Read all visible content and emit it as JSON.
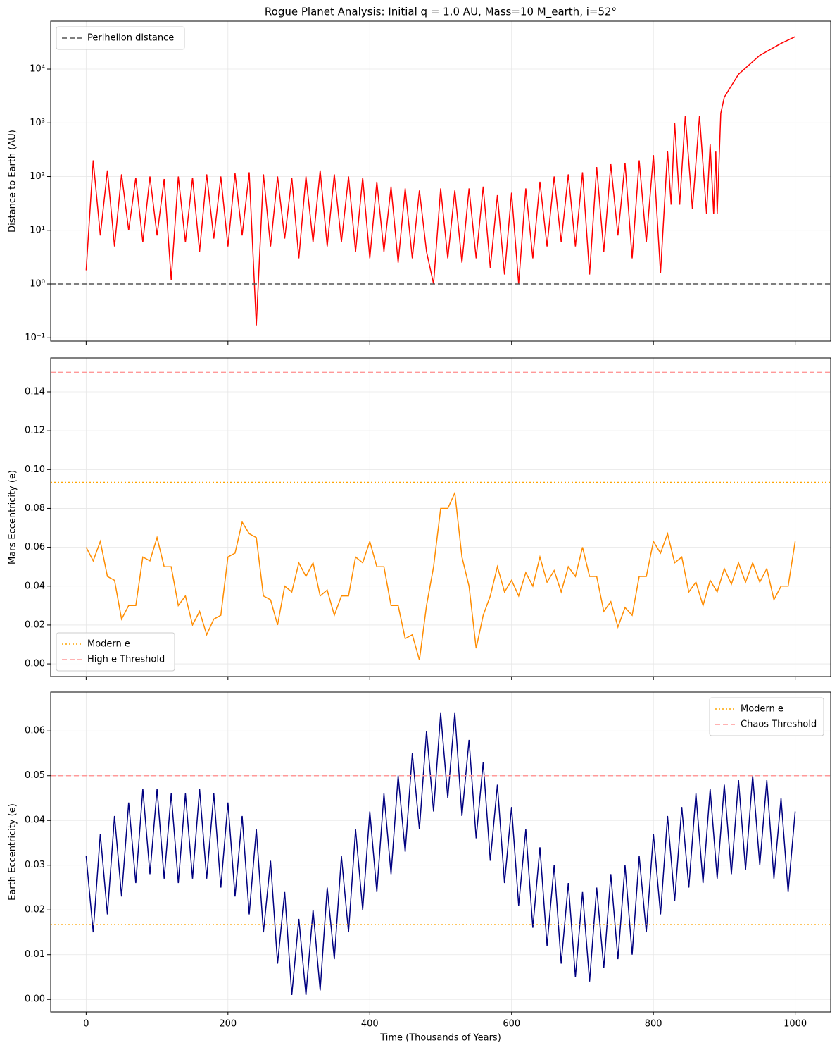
{
  "chart_data": [
    {
      "type": "line",
      "title": "Rogue Planet Analysis: Initial q = 1.0 AU, Mass=10 M_earth, i=52°",
      "ylabel": "Distance to Earth (AU)",
      "yscale": "log",
      "grid": true,
      "legend": "upper left",
      "xlim": [
        -50,
        1050
      ],
      "ylim": [
        0.0867,
        78000
      ],
      "yticks": [
        {
          "value": 0.1,
          "label": "10⁻¹"
        },
        {
          "value": 1,
          "label": "10⁰"
        },
        {
          "value": 10,
          "label": "10¹"
        },
        {
          "value": 100,
          "label": "10²"
        },
        {
          "value": 1000,
          "label": "10³"
        },
        {
          "value": 10000,
          "label": "10⁴"
        }
      ],
      "color": "#ff0000",
      "x": [
        0,
        10,
        20,
        30,
        40,
        50,
        60,
        70,
        80,
        90,
        100,
        110,
        120,
        130,
        140,
        150,
        160,
        170,
        180,
        190,
        200,
        210,
        220,
        230,
        240,
        250,
        260,
        270,
        280,
        290,
        300,
        310,
        320,
        330,
        340,
        350,
        360,
        370,
        380,
        390,
        400,
        410,
        420,
        430,
        440,
        450,
        460,
        470,
        480,
        490,
        500,
        510,
        520,
        530,
        540,
        550,
        560,
        570,
        580,
        590,
        600,
        610,
        620,
        630,
        640,
        650,
        660,
        670,
        680,
        690,
        700,
        710,
        720,
        730,
        740,
        750,
        760,
        770,
        780,
        790,
        800,
        810,
        820,
        825,
        830,
        837,
        845,
        855,
        865,
        875,
        880,
        885,
        888,
        890,
        895,
        900,
        920,
        950,
        980,
        1000
      ],
      "values": [
        1.8,
        200,
        8,
        130,
        5,
        110,
        10,
        95,
        6,
        100,
        8,
        90,
        1.2,
        100,
        6,
        95,
        4,
        110,
        7,
        100,
        5,
        115,
        8,
        120,
        0.17,
        110,
        5,
        100,
        7,
        95,
        3,
        100,
        6,
        130,
        5,
        110,
        6,
        100,
        4,
        95,
        3,
        80,
        4,
        65,
        2.5,
        60,
        3,
        55,
        4,
        1.0,
        60,
        3,
        55,
        2.5,
        60,
        3,
        65,
        2,
        45,
        1.5,
        50,
        1.0,
        60,
        3,
        80,
        5,
        100,
        6,
        110,
        5,
        120,
        1.5,
        150,
        4,
        170,
        8,
        180,
        3,
        200,
        6,
        250,
        1.6,
        300,
        30,
        1000,
        30,
        1350,
        25,
        1350,
        20,
        400,
        20,
        300,
        20,
        1500,
        3000,
        8000,
        18000,
        30000,
        40000
      ],
      "hlines": [
        {
          "label": "Perihelion distance",
          "value": 1.0,
          "color": "#555555",
          "dash": "7 4"
        }
      ]
    },
    {
      "type": "line",
      "ylabel": "Mars Eccentricity (e)",
      "grid": true,
      "legend": "lower left",
      "xlim": [
        -50,
        1050
      ],
      "ylim": [
        -0.0065,
        0.1574
      ],
      "yticks": [
        {
          "value": 0,
          "label": "0.00"
        },
        {
          "value": 0.02,
          "label": "0.02"
        },
        {
          "value": 0.04,
          "label": "0.04"
        },
        {
          "value": 0.06,
          "label": "0.06"
        },
        {
          "value": 0.08,
          "label": "0.08"
        },
        {
          "value": 0.1,
          "label": "0.10"
        },
        {
          "value": 0.12,
          "label": "0.12"
        },
        {
          "value": 0.14,
          "label": "0.14"
        }
      ],
      "color": "#ff8c00",
      "x": [
        0,
        10,
        20,
        30,
        40,
        50,
        60,
        70,
        80,
        90,
        100,
        110,
        120,
        130,
        140,
        150,
        160,
        170,
        180,
        190,
        200,
        210,
        220,
        230,
        240,
        250,
        260,
        270,
        280,
        290,
        300,
        310,
        320,
        330,
        340,
        350,
        360,
        370,
        380,
        390,
        400,
        410,
        420,
        430,
        440,
        450,
        460,
        470,
        480,
        490,
        500,
        510,
        520,
        530,
        540,
        550,
        560,
        570,
        580,
        590,
        600,
        610,
        620,
        630,
        640,
        650,
        660,
        670,
        680,
        690,
        700,
        710,
        720,
        730,
        740,
        750,
        760,
        770,
        780,
        790,
        800,
        810,
        820,
        830,
        840,
        850,
        860,
        870,
        880,
        890,
        900,
        910,
        920,
        930,
        940,
        950,
        960,
        970,
        980,
        990,
        1000
      ],
      "values": [
        0.06,
        0.053,
        0.063,
        0.045,
        0.043,
        0.023,
        0.03,
        0.03,
        0.055,
        0.053,
        0.065,
        0.05,
        0.05,
        0.03,
        0.035,
        0.02,
        0.027,
        0.015,
        0.023,
        0.025,
        0.055,
        0.057,
        0.073,
        0.067,
        0.065,
        0.035,
        0.033,
        0.02,
        0.04,
        0.037,
        0.052,
        0.045,
        0.052,
        0.035,
        0.038,
        0.025,
        0.035,
        0.035,
        0.055,
        0.052,
        0.063,
        0.05,
        0.05,
        0.03,
        0.03,
        0.013,
        0.015,
        0.002,
        0.03,
        0.05,
        0.08,
        0.08,
        0.088,
        0.055,
        0.04,
        0.008,
        0.025,
        0.035,
        0.05,
        0.037,
        0.043,
        0.035,
        0.047,
        0.04,
        0.055,
        0.042,
        0.048,
        0.037,
        0.05,
        0.045,
        0.06,
        0.045,
        0.045,
        0.027,
        0.032,
        0.019,
        0.029,
        0.025,
        0.045,
        0.045,
        0.063,
        0.057,
        0.067,
        0.052,
        0.055,
        0.037,
        0.042,
        0.03,
        0.043,
        0.037,
        0.049,
        0.041,
        0.052,
        0.042,
        0.052,
        0.042,
        0.049,
        0.033,
        0.04,
        0.04,
        0.063
      ],
      "hlines": [
        {
          "label": "Modern e",
          "value": 0.0934,
          "color": "#ffa500",
          "dash": "2 3"
        },
        {
          "label": "High e Threshold",
          "value": 0.15,
          "color": "#ff9999",
          "dash": "7 4"
        }
      ]
    },
    {
      "type": "line",
      "ylabel": "Earth Eccentricity (e)",
      "xlabel": "Time (Thousands of Years)",
      "grid": true,
      "legend": "upper right",
      "xlim": [
        -50,
        1050
      ],
      "ylim": [
        -0.0028,
        0.0687
      ],
      "xticks": [
        0,
        200,
        400,
        600,
        800,
        1000
      ],
      "yticks": [
        {
          "value": 0,
          "label": "0.00"
        },
        {
          "value": 0.01,
          "label": "0.01"
        },
        {
          "value": 0.02,
          "label": "0.02"
        },
        {
          "value": 0.03,
          "label": "0.03"
        },
        {
          "value": 0.04,
          "label": "0.04"
        },
        {
          "value": 0.05,
          "label": "0.05"
        },
        {
          "value": 0.06,
          "label": "0.06"
        }
      ],
      "color": "#000080",
      "x": [
        0,
        10,
        20,
        30,
        40,
        50,
        60,
        70,
        80,
        90,
        100,
        110,
        120,
        130,
        140,
        150,
        160,
        170,
        180,
        190,
        200,
        210,
        220,
        230,
        240,
        250,
        260,
        270,
        280,
        290,
        300,
        310,
        320,
        330,
        340,
        350,
        360,
        370,
        380,
        390,
        400,
        410,
        420,
        430,
        440,
        450,
        460,
        470,
        480,
        490,
        500,
        510,
        520,
        530,
        540,
        550,
        560,
        570,
        580,
        590,
        600,
        610,
        620,
        630,
        640,
        650,
        660,
        670,
        680,
        690,
        700,
        710,
        720,
        730,
        740,
        750,
        760,
        770,
        780,
        790,
        800,
        810,
        820,
        830,
        840,
        850,
        860,
        870,
        880,
        890,
        900,
        910,
        920,
        930,
        940,
        950,
        960,
        970,
        980,
        990,
        1000
      ],
      "values": [
        0.032,
        0.015,
        0.037,
        0.019,
        0.041,
        0.023,
        0.044,
        0.026,
        0.047,
        0.028,
        0.047,
        0.027,
        0.046,
        0.026,
        0.046,
        0.027,
        0.047,
        0.027,
        0.046,
        0.025,
        0.044,
        0.023,
        0.041,
        0.019,
        0.038,
        0.015,
        0.031,
        0.008,
        0.024,
        0.001,
        0.018,
        0.001,
        0.02,
        0.002,
        0.025,
        0.009,
        0.032,
        0.015,
        0.038,
        0.02,
        0.042,
        0.024,
        0.046,
        0.028,
        0.05,
        0.033,
        0.055,
        0.038,
        0.06,
        0.042,
        0.064,
        0.045,
        0.064,
        0.041,
        0.058,
        0.036,
        0.053,
        0.031,
        0.048,
        0.026,
        0.043,
        0.021,
        0.038,
        0.016,
        0.034,
        0.012,
        0.03,
        0.008,
        0.026,
        0.005,
        0.024,
        0.004,
        0.025,
        0.007,
        0.028,
        0.009,
        0.03,
        0.01,
        0.032,
        0.015,
        0.037,
        0.019,
        0.041,
        0.022,
        0.043,
        0.025,
        0.046,
        0.026,
        0.047,
        0.027,
        0.048,
        0.028,
        0.049,
        0.029,
        0.05,
        0.03,
        0.049,
        0.027,
        0.045,
        0.024,
        0.042
      ],
      "hlines": [
        {
          "label": "Modern e",
          "value": 0.0167,
          "color": "#ffa500",
          "dash": "2 3"
        },
        {
          "label": "Chaos Threshold",
          "value": 0.05,
          "color": "#ff9999",
          "dash": "7 4"
        }
      ]
    }
  ]
}
